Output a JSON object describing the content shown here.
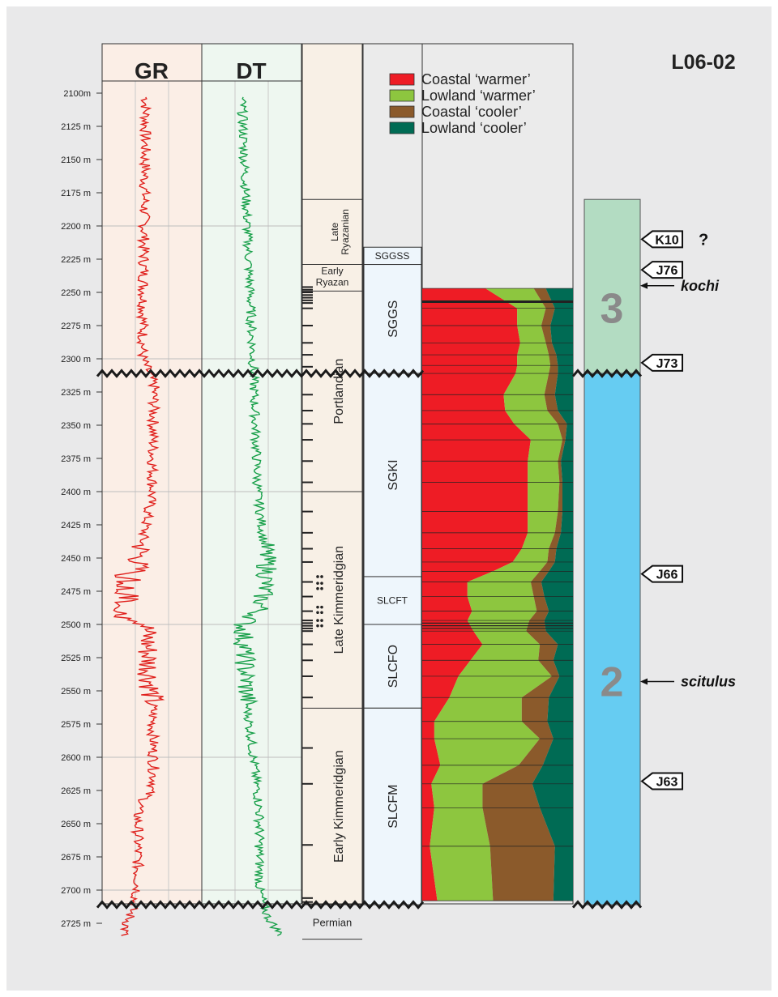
{
  "well_name": "L06-02",
  "log_tracks": [
    {
      "label": "GR",
      "color": "#e0201c",
      "bg": "#fbeee6"
    },
    {
      "label": "DT",
      "color": "#18a04a",
      "bg": "#eef7f0"
    }
  ],
  "depth_ticks": [
    "2100m",
    "2125 m",
    "2150 m",
    "2175 m",
    "2200 m",
    "2225 m",
    "2250 m",
    "2275 m",
    "2300 m",
    "2325 m",
    "2350 m",
    "2375 m",
    "2400 m",
    "2425 m",
    "2450 m",
    "2475 m",
    "2500 m",
    "2525 m",
    "2550 m",
    "2575 m",
    "2600 m",
    "2625 m",
    "2650 m",
    "2675 m",
    "2700 m",
    "2725 m"
  ],
  "depth_range_m": [
    2100,
    2737
  ],
  "stages": [
    {
      "label": "Late Ryazanian",
      "top": 2180,
      "bottom": 2229
    },
    {
      "label": "Early Ryazan",
      "top": 2229,
      "bottom": 2249
    },
    {
      "label": "Portlandian",
      "top": 2249,
      "bottom": 2400
    },
    {
      "label": "Late Kimmeridgian",
      "top": 2400,
      "bottom": 2563
    },
    {
      "label": "Early Kimmeridgian",
      "top": 2563,
      "bottom": 2711
    },
    {
      "label": "Permian",
      "top": 2711,
      "bottom": 2737
    }
  ],
  "zones": [
    {
      "label": "SGGSS",
      "top": 2216,
      "bottom": 2229
    },
    {
      "label": "SGGS",
      "top": 2229,
      "bottom": 2311
    },
    {
      "label": "SGKI",
      "top": 2311,
      "bottom": 2464
    },
    {
      "label": "SLCFT",
      "top": 2464,
      "bottom": 2500
    },
    {
      "label": "SLCFO",
      "top": 2500,
      "bottom": 2563
    },
    {
      "label": "SLCFM",
      "top": 2563,
      "bottom": 2711
    }
  ],
  "legend": [
    {
      "label": "Coastal ‘warmer’",
      "color": "#ee1c25"
    },
    {
      "label": "Lowland ‘warmer’",
      "color": "#8dc63f"
    },
    {
      "label": "Coastal ‘cooler’",
      "color": "#8b5a2b"
    },
    {
      "label": "Lowland ‘cooler’",
      "color": "#006b54"
    }
  ],
  "sequences": [
    {
      "label": "3",
      "top": 2180,
      "bottom": 2311,
      "color": "#b3dcc2"
    },
    {
      "label": "2",
      "top": 2311,
      "bottom": 2711,
      "color": "#66ccf2"
    }
  ],
  "markers": [
    {
      "label": "K10",
      "depth": 2210,
      "query": "?"
    },
    {
      "label": "J76",
      "depth": 2233
    },
    {
      "label": "J73",
      "depth": 2303
    },
    {
      "label": "J66",
      "depth": 2462
    },
    {
      "label": "J63",
      "depth": 2618
    }
  ],
  "species": [
    {
      "label": "kochi",
      "depth": 2245
    },
    {
      "label": "scitulus",
      "depth": 2543
    }
  ],
  "unconformities_m": [
    2311,
    2711
  ],
  "chart_data": {
    "type": "area",
    "title": "",
    "xlabel": "",
    "ylabel": "",
    "ylim": [
      2246,
      2711
    ],
    "series": [
      {
        "name": "Coastal ‘warmer’",
        "values": [
          0.42,
          0.63,
          0.63,
          0.65,
          0.63,
          0.63,
          0.62,
          0.54,
          0.55,
          0.61,
          0.72,
          0.7,
          0.7,
          0.7,
          0.7,
          0.66,
          0.6,
          0.47,
          0.3,
          0.3,
          0.33,
          0.3,
          0.34,
          0.4,
          0.32,
          0.24,
          0.18,
          0.08,
          0.08,
          0.12,
          0.06,
          0.08,
          0.05,
          0.1
        ]
      },
      {
        "name": "Lowland ‘warmer’",
        "values": [
          0.32,
          0.19,
          0.16,
          0.17,
          0.21,
          0.22,
          0.22,
          0.27,
          0.28,
          0.29,
          0.21,
          0.2,
          0.21,
          0.2,
          0.18,
          0.18,
          0.23,
          0.31,
          0.42,
          0.44,
          0.43,
          0.41,
          0.35,
          0.38,
          0.45,
          0.62,
          0.48,
          0.58,
          0.7,
          0.52,
          0.34,
          0.32,
          0.4,
          0.37
        ]
      },
      {
        "name": "Coastal ‘cooler’",
        "values": [
          0.08,
          0.06,
          0.06,
          0.04,
          0.05,
          0.05,
          0.06,
          0.07,
          0.07,
          0.06,
          0.02,
          0.02,
          0.02,
          0.03,
          0.04,
          0.05,
          0.05,
          0.06,
          0.07,
          0.07,
          0.08,
          0.1,
          0.13,
          0.12,
          0.1,
          0.05,
          0.18,
          0.17,
          0.09,
          0.16,
          0.33,
          0.38,
          0.43,
          0.4
        ]
      },
      {
        "name": "Lowland ‘cooler’",
        "values": [
          0.18,
          0.12,
          0.15,
          0.14,
          0.11,
          0.1,
          0.1,
          0.12,
          0.1,
          0.04,
          0.05,
          0.08,
          0.07,
          0.07,
          0.08,
          0.11,
          0.12,
          0.16,
          0.21,
          0.19,
          0.16,
          0.19,
          0.18,
          0.1,
          0.13,
          0.09,
          0.16,
          0.17,
          0.13,
          0.2,
          0.27,
          0.22,
          0.12,
          0.13
        ]
      }
    ],
    "depths_m": [
      2247,
      2262,
      2275,
      2288,
      2297,
      2305,
      2311,
      2327,
      2339,
      2349,
      2361,
      2377,
      2393,
      2415,
      2431,
      2443,
      2453,
      2460,
      2468,
      2479,
      2490,
      2497,
      2505,
      2515,
      2527,
      2539,
      2555,
      2573,
      2586,
      2606,
      2620,
      2638,
      2667,
      2708
    ]
  }
}
